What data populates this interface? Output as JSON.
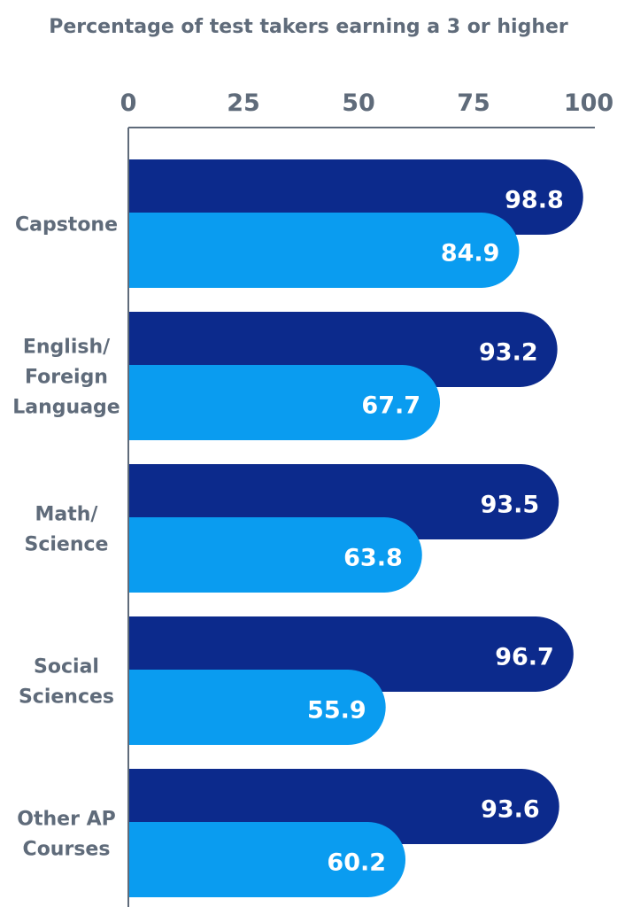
{
  "chart_data": {
    "type": "bar",
    "orientation": "horizontal",
    "title": "Percentage of test takers earning a 3 or higher",
    "xlim": [
      0,
      100
    ],
    "x_ticks": [
      "0",
      "25",
      "50",
      "75",
      "100"
    ],
    "categories": [
      [
        "Capstone"
      ],
      [
        "English/",
        "Foreign",
        "Language"
      ],
      [
        "Math/",
        "Science"
      ],
      [
        "Social",
        "Sciences"
      ],
      [
        "Other AP",
        "Courses"
      ]
    ],
    "series": [
      {
        "values": [
          98.8,
          93.2,
          93.5,
          96.7,
          93.6
        ],
        "color": "#0c2a8c"
      },
      {
        "values": [
          84.9,
          67.7,
          63.8,
          55.9,
          60.2
        ],
        "color": "#0a9cf0"
      }
    ],
    "grid": false,
    "legend": "none"
  }
}
